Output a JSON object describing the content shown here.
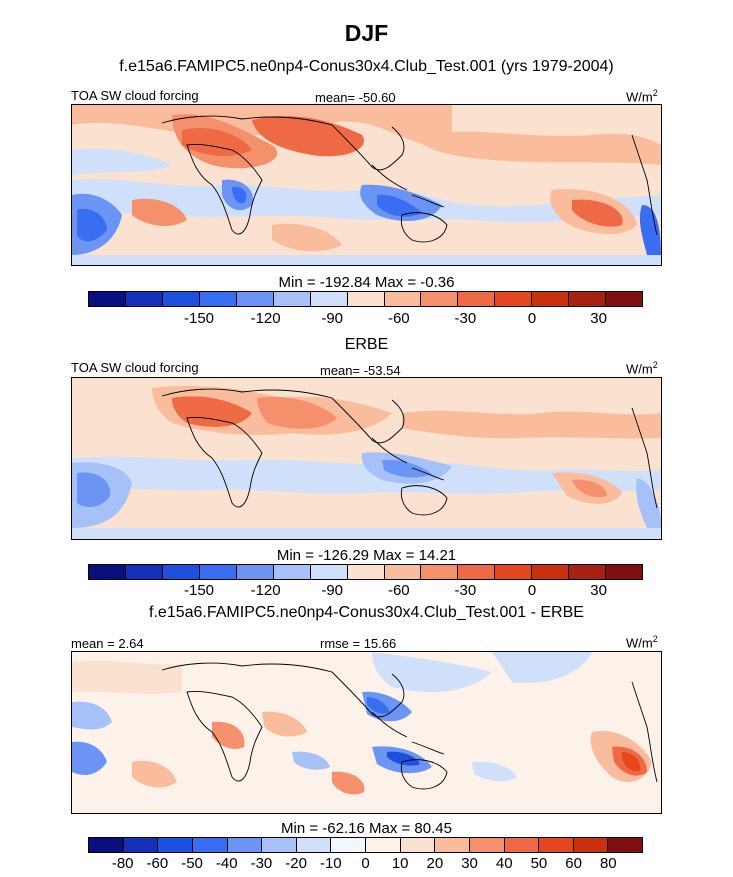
{
  "figure": {
    "title": "DJF",
    "colors": {
      "panel1_scale": [
        "#0a0f80",
        "#1430b8",
        "#1e50e0",
        "#3a6ef0",
        "#6c94f4",
        "#a6c0f8",
        "#d0e0fa",
        "#fbe2d0",
        "#f9bd9e",
        "#f4916c",
        "#ee6a45",
        "#e4461e",
        "#c8300e",
        "#a82010",
        "#801010"
      ],
      "diff_scale": [
        "#0a0f80",
        "#1430b8",
        "#1e50e0",
        "#3a6ef0",
        "#6c94f4",
        "#a6c0f8",
        "#d0e0fa",
        "#f2f6fe",
        "#fdf2ea",
        "#fbe2d0",
        "#f9bd9e",
        "#f4916c",
        "#ee6a45",
        "#e4461e",
        "#c8300e",
        "#801010"
      ],
      "land_outline": "#000000"
    }
  },
  "chart_data": [
    {
      "type": "heatmap",
      "title": "f.e15a6.FAMIPC5.ne0np4-Conus30x4.Club_Test.001 (yrs 1979-2004)",
      "left_label": "TOA SW cloud forcing",
      "center_label": "mean= -50.60",
      "units_label": "W/m",
      "units_sup": "2",
      "minmax_label": "Min = -192.84 Max =  -0.36",
      "min": -192.84,
      "max": -0.36,
      "mean": -50.6,
      "colorbar_ticks": [
        "-150",
        "-120",
        "-90",
        "-60",
        "-30",
        "0",
        "30"
      ],
      "colorbar_tick_values": [
        -150,
        -120,
        -90,
        -60,
        -30,
        0,
        30
      ],
      "colorbar_range": [
        -200,
        50
      ]
    },
    {
      "type": "heatmap",
      "title": "ERBE",
      "left_label": "TOA SW cloud forcing",
      "center_label": "mean= -53.54",
      "units_label": "W/m",
      "units_sup": "2",
      "minmax_label": "Min = -126.29 Max =  14.21",
      "min": -126.29,
      "max": 14.21,
      "mean": -53.54,
      "colorbar_ticks": [
        "-150",
        "-120",
        "-90",
        "-60",
        "-30",
        "0",
        "30"
      ],
      "colorbar_tick_values": [
        -150,
        -120,
        -90,
        -60,
        -30,
        0,
        30
      ],
      "colorbar_range": [
        -200,
        50
      ]
    },
    {
      "type": "heatmap",
      "title": "f.e15a6.FAMIPC5.ne0np4-Conus30x4.Club_Test.001 - ERBE",
      "left_label": "mean =   2.64",
      "center_label": "rmse =  15.66",
      "units_label": "W/m",
      "units_sup": "2",
      "minmax_label": "Min = -62.16 Max =  80.45",
      "min": -62.16,
      "max": 80.45,
      "mean": 2.64,
      "rmse": 15.66,
      "colorbar_ticks": [
        "-80",
        "-60",
        "-50",
        "-40",
        "-30",
        "-20",
        "-10",
        "0",
        "10",
        "20",
        "30",
        "40",
        "50",
        "60",
        "80"
      ],
      "colorbar_tick_values": [
        -80,
        -60,
        -50,
        -40,
        -30,
        -20,
        -10,
        0,
        10,
        20,
        30,
        40,
        50,
        60,
        80
      ]
    }
  ]
}
